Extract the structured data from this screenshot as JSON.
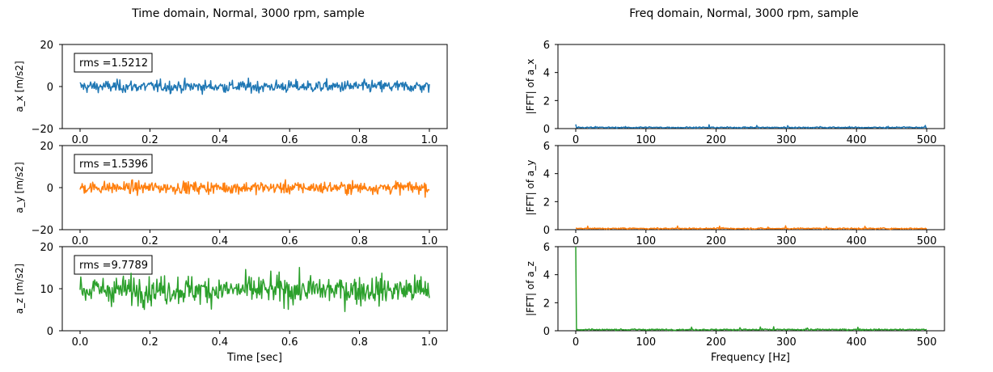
{
  "chart_data": [
    {
      "type": "line",
      "title": "Time domain, Normal, 3000 rpm, sample",
      "xlabel": "Time [sec]",
      "x_ticks": [
        "0.0",
        "0.2",
        "0.4",
        "0.6",
        "0.8",
        "1.0"
      ],
      "xlim": [
        0,
        1
      ],
      "subplots": [
        {
          "ylabel": "a_x [m/s2]",
          "ylim": [
            -20,
            20
          ],
          "y_ticks": [
            "20",
            "0",
            "−20"
          ],
          "color": "#1f77b4",
          "annotation": "rms =1.5212",
          "rms": 1.5212,
          "mean": 0
        },
        {
          "ylabel": "a_y [m/s2]",
          "ylim": [
            -20,
            20
          ],
          "y_ticks": [
            "20",
            "0",
            "−20"
          ],
          "color": "#ff7f0e",
          "annotation": "rms =1.5396",
          "rms": 1.5396,
          "mean": 0
        },
        {
          "ylabel": "a_z [m/s2]",
          "ylim": [
            0,
            20
          ],
          "y_ticks": [
            "20",
            "10",
            "0"
          ],
          "color": "#2ca02c",
          "annotation": "rms =9.7789",
          "rms": 9.7789,
          "mean": 9.7
        }
      ]
    },
    {
      "type": "line",
      "title": "Freq domain, Normal, 3000 rpm, sample",
      "xlabel": "Frequency [Hz]",
      "x_ticks": [
        "0",
        "100",
        "200",
        "300",
        "400",
        "500"
      ],
      "xlim": [
        0,
        500
      ],
      "subplots": [
        {
          "ylabel": "|FFT| of a_x",
          "ylim": [
            0,
            6
          ],
          "y_ticks": [
            "6",
            "4",
            "2",
            "0"
          ],
          "color": "#1f77b4",
          "dc_value": 0.3
        },
        {
          "ylabel": "|FFT| of a_y",
          "ylim": [
            0,
            6
          ],
          "y_ticks": [
            "6",
            "4",
            "2",
            "0"
          ],
          "color": "#ff7f0e",
          "dc_value": 0.1
        },
        {
          "ylabel": "|FFT| of a_z",
          "ylim": [
            0,
            6
          ],
          "y_ticks": [
            "6",
            "4",
            "2",
            "0"
          ],
          "color": "#2ca02c",
          "dc_value": 6
        }
      ]
    }
  ]
}
